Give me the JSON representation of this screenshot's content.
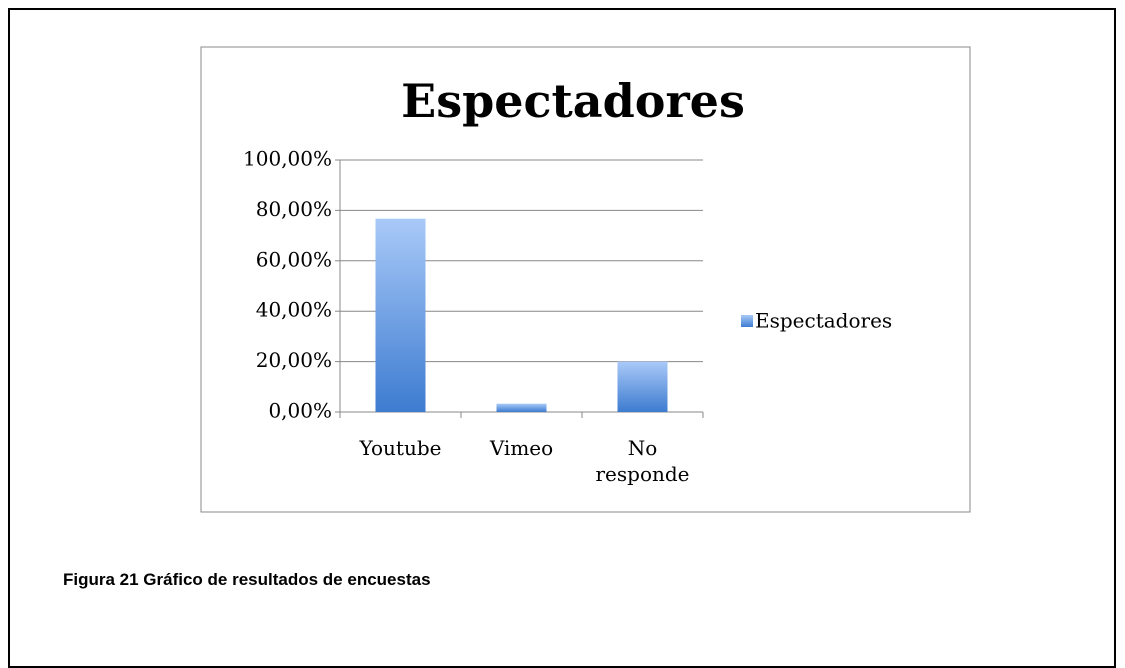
{
  "chart_data": {
    "type": "bar",
    "title": "Espectadores",
    "categories": [
      "Youtube",
      "Vimeo",
      "No responde"
    ],
    "series": [
      {
        "name": "Espectadores",
        "color": "#3d7cd0",
        "values": [
          76.7,
          3.3,
          20
        ]
      }
    ],
    "ylim": [
      0,
      100
    ],
    "yticks": [
      {
        "value": 0,
        "label": "0,00%"
      },
      {
        "value": 20,
        "label": "20,00%"
      },
      {
        "value": 40,
        "label": "40,00%"
      },
      {
        "value": 60,
        "label": "60,00%"
      },
      {
        "value": 80,
        "label": "80,00%"
      },
      {
        "value": 100,
        "label": "100,00%"
      }
    ],
    "grid": true,
    "legend": "right"
  },
  "caption": "Figura 21 Gráfico de resultados de encuestas"
}
